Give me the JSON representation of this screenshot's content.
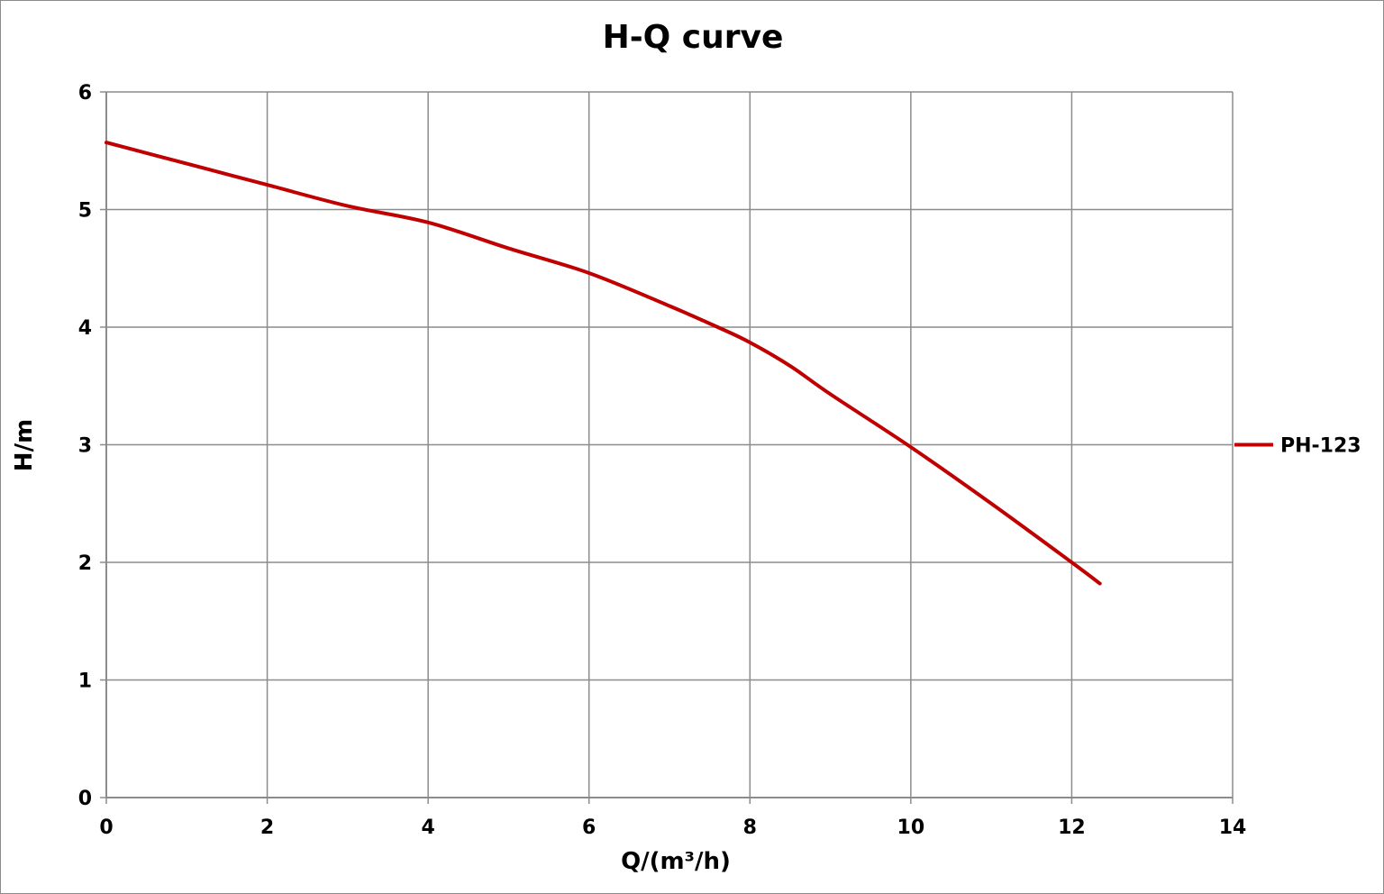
{
  "chart_data": {
    "type": "line",
    "title": "H-Q  curve",
    "xlabel": "Q/(m³/h)",
    "ylabel": "H/m",
    "xlim": [
      0,
      14
    ],
    "ylim": [
      0,
      6
    ],
    "xticks": [
      0,
      2,
      4,
      6,
      8,
      10,
      12,
      14
    ],
    "yticks": [
      0,
      1,
      2,
      3,
      4,
      5,
      6
    ],
    "grid": true,
    "legend_position": "right",
    "series": [
      {
        "name": "PH-123",
        "color": "#c00000",
        "points": [
          [
            0,
            5.57
          ],
          [
            1,
            5.39
          ],
          [
            2,
            5.21
          ],
          [
            3,
            5.03
          ],
          [
            4,
            4.89
          ],
          [
            5,
            4.67
          ],
          [
            6,
            4.46
          ],
          [
            7,
            4.18
          ],
          [
            7.6,
            4.0
          ],
          [
            8,
            3.87
          ],
          [
            8.5,
            3.67
          ],
          [
            9,
            3.43
          ],
          [
            10,
            2.98
          ],
          [
            11,
            2.5
          ],
          [
            12,
            2.0
          ],
          [
            12.35,
            1.82
          ]
        ]
      }
    ]
  }
}
